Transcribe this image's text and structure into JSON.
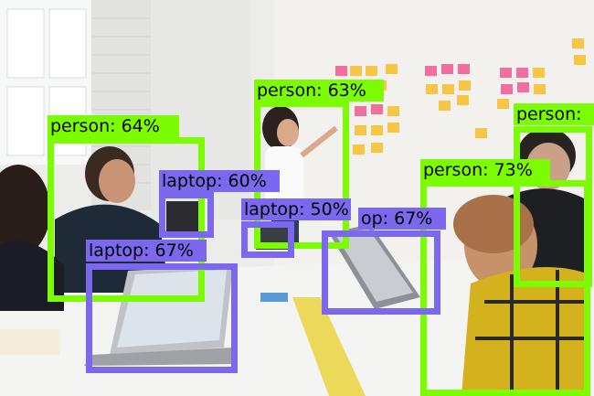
{
  "detections": [
    {
      "label": "person: 64%",
      "class": "person",
      "score": 64,
      "color": "#7CFC00"
    },
    {
      "label": "person: 63%",
      "class": "person",
      "score": 63,
      "color": "#7CFC00"
    },
    {
      "label": "person:",
      "class": "person",
      "color": "#7CFC00"
    },
    {
      "label": "person: 73%",
      "class": "person",
      "score": 73,
      "color": "#7CFC00"
    },
    {
      "label": "laptop: 60%",
      "class": "laptop",
      "score": 60,
      "color": "#7B68EE"
    },
    {
      "label": "laptop: 50%",
      "class": "laptop",
      "score": 50,
      "color": "#7B68EE"
    },
    {
      "label": "op: 67%",
      "class": "laptop",
      "score": 67,
      "color": "#7B68EE"
    },
    {
      "label": "laptop: 67%",
      "class": "laptop",
      "score": 67,
      "color": "#7B68EE"
    }
  ]
}
